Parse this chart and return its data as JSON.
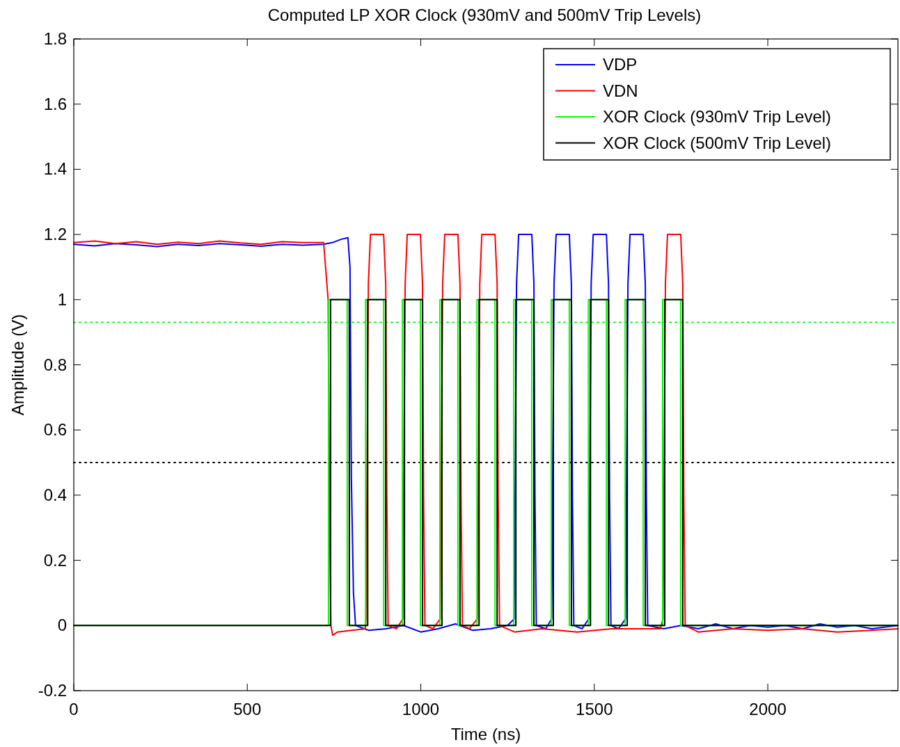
{
  "chart_data": {
    "type": "line",
    "title": "Computed LP XOR Clock (930mV and 500mV Trip Levels)",
    "xlabel": "Time (ns)",
    "ylabel": "Amplitude (V)",
    "xlim": [
      0,
      2375
    ],
    "xticks": [
      0,
      500,
      1000,
      1500,
      2000
    ],
    "ylim": [
      -0.2,
      1.8
    ],
    "yticks": [
      -0.2,
      0,
      0.2,
      0.4,
      0.6,
      0.8,
      1,
      1.2,
      1.4,
      1.6,
      1.8
    ],
    "grid": false,
    "legend": "top right",
    "marker": "none",
    "line_style": "solid",
    "ref_lines": [
      {
        "axis": "y",
        "value": 0.93,
        "color": "#00ff00",
        "line_style": "dotted"
      },
      {
        "axis": "y",
        "value": 0.5,
        "color": "#000000",
        "line_style": "dotted"
      }
    ],
    "series": [
      {
        "name": "VDP",
        "color": "#0000ff",
        "type": "line",
        "x": [
          0,
          60,
          120,
          180,
          240,
          300,
          360,
          420,
          480,
          540,
          600,
          660,
          720,
          745,
          770,
          790,
          796,
          800,
          806,
          812,
          850,
          900,
          950,
          1000,
          1050,
          1100,
          1150,
          1200,
          1250,
          1269,
          1272,
          1276,
          1282,
          1320,
          1326,
          1329,
          1333,
          1360,
          1377,
          1380,
          1384,
          1390,
          1428,
          1434,
          1437,
          1441,
          1465,
          1484,
          1487,
          1491,
          1497,
          1535,
          1541,
          1544,
          1548,
          1570,
          1590,
          1593,
          1597,
          1603,
          1641,
          1647,
          1650,
          1654,
          1700,
          1750,
          1800,
          1850,
          1900,
          1950,
          2000,
          2050,
          2100,
          2150,
          2200,
          2250,
          2300,
          2375
        ],
        "values": [
          1.17,
          1.165,
          1.172,
          1.168,
          1.163,
          1.17,
          1.166,
          1.172,
          1.168,
          1.164,
          1.17,
          1.167,
          1.17,
          1.175,
          1.185,
          1.19,
          1.1,
          0.45,
          0.1,
          0.0,
          -0.015,
          -0.01,
          0.0,
          -0.02,
          -0.01,
          0.005,
          -0.015,
          -0.01,
          0.0,
          0.02,
          0.42,
          1.05,
          1.2,
          1.2,
          1.05,
          0.4,
          0.0,
          -0.01,
          0.02,
          0.42,
          1.05,
          1.2,
          1.2,
          1.05,
          0.4,
          0.0,
          -0.01,
          0.02,
          0.42,
          1.05,
          1.2,
          1.2,
          1.05,
          0.4,
          0.0,
          -0.01,
          0.02,
          0.42,
          1.05,
          1.2,
          1.2,
          1.05,
          0.4,
          0.0,
          -0.01,
          0.0,
          -0.01,
          0.005,
          -0.01,
          0.0,
          -0.005,
          0.0,
          -0.01,
          0.005,
          -0.005,
          0.0,
          -0.01,
          0.0
        ]
      },
      {
        "name": "VDN",
        "color": "#ff0000",
        "type": "line",
        "x": [
          0,
          60,
          120,
          180,
          240,
          300,
          360,
          420,
          480,
          540,
          600,
          660,
          720,
          733,
          737,
          741,
          746,
          760,
          800,
          840,
          842,
          845,
          849,
          855,
          893,
          899,
          902,
          906,
          930,
          948,
          951,
          955,
          961,
          999,
          1005,
          1008,
          1012,
          1035,
          1056,
          1059,
          1063,
          1069,
          1107,
          1113,
          1116,
          1120,
          1140,
          1163,
          1166,
          1170,
          1176,
          1214,
          1220,
          1223,
          1227,
          1270,
          1350,
          1450,
          1550,
          1650,
          1690,
          1698,
          1701,
          1705,
          1711,
          1749,
          1755,
          1758,
          1762,
          1800,
          1900,
          2000,
          2100,
          2200,
          2300,
          2375
        ],
        "values": [
          1.175,
          1.18,
          1.172,
          1.178,
          1.17,
          1.176,
          1.172,
          1.18,
          1.174,
          1.17,
          1.178,
          1.175,
          1.175,
          1.0,
          0.35,
          0.0,
          -0.03,
          -0.02,
          -0.015,
          -0.01,
          0.02,
          0.42,
          1.05,
          1.2,
          1.2,
          1.05,
          0.4,
          0.0,
          -0.01,
          0.02,
          0.42,
          1.05,
          1.2,
          1.2,
          1.05,
          0.4,
          0.0,
          -0.01,
          0.02,
          0.42,
          1.05,
          1.2,
          1.2,
          1.05,
          0.4,
          0.0,
          -0.01,
          0.02,
          0.42,
          1.05,
          1.2,
          1.2,
          1.05,
          0.4,
          0.0,
          -0.02,
          -0.01,
          -0.02,
          -0.01,
          -0.01,
          -0.01,
          0.02,
          0.42,
          1.05,
          1.2,
          1.2,
          1.05,
          0.4,
          0.0,
          -0.02,
          -0.01,
          -0.015,
          -0.01,
          -0.02,
          -0.015,
          -0.01
        ]
      },
      {
        "name": "XOR Clock (930mV Trip Level)",
        "color": "#00ff00",
        "type": "step",
        "x": [
          0,
          734,
          788,
          841,
          893,
          947,
          999,
          1055,
          1107,
          1162,
          1214,
          1268,
          1320,
          1376,
          1428,
          1483,
          1535,
          1589,
          1641,
          1697,
          1749,
          2375
        ],
        "values": [
          0,
          1,
          0,
          1,
          0,
          1,
          0,
          1,
          0,
          1,
          0,
          1,
          0,
          1,
          0,
          1,
          0,
          1,
          0,
          1,
          0,
          0
        ]
      },
      {
        "name": "XOR Clock (500mV Trip Level)",
        "color": "#000000",
        "type": "step",
        "x": [
          0,
          740,
          794,
          847,
          899,
          953,
          1005,
          1061,
          1113,
          1168,
          1220,
          1274,
          1326,
          1382,
          1434,
          1489,
          1541,
          1595,
          1647,
          1703,
          1755,
          2375
        ],
        "values": [
          0,
          1,
          0,
          1,
          0,
          1,
          0,
          1,
          0,
          1,
          0,
          1,
          0,
          1,
          0,
          1,
          0,
          1,
          0,
          1,
          0,
          0
        ]
      }
    ]
  }
}
